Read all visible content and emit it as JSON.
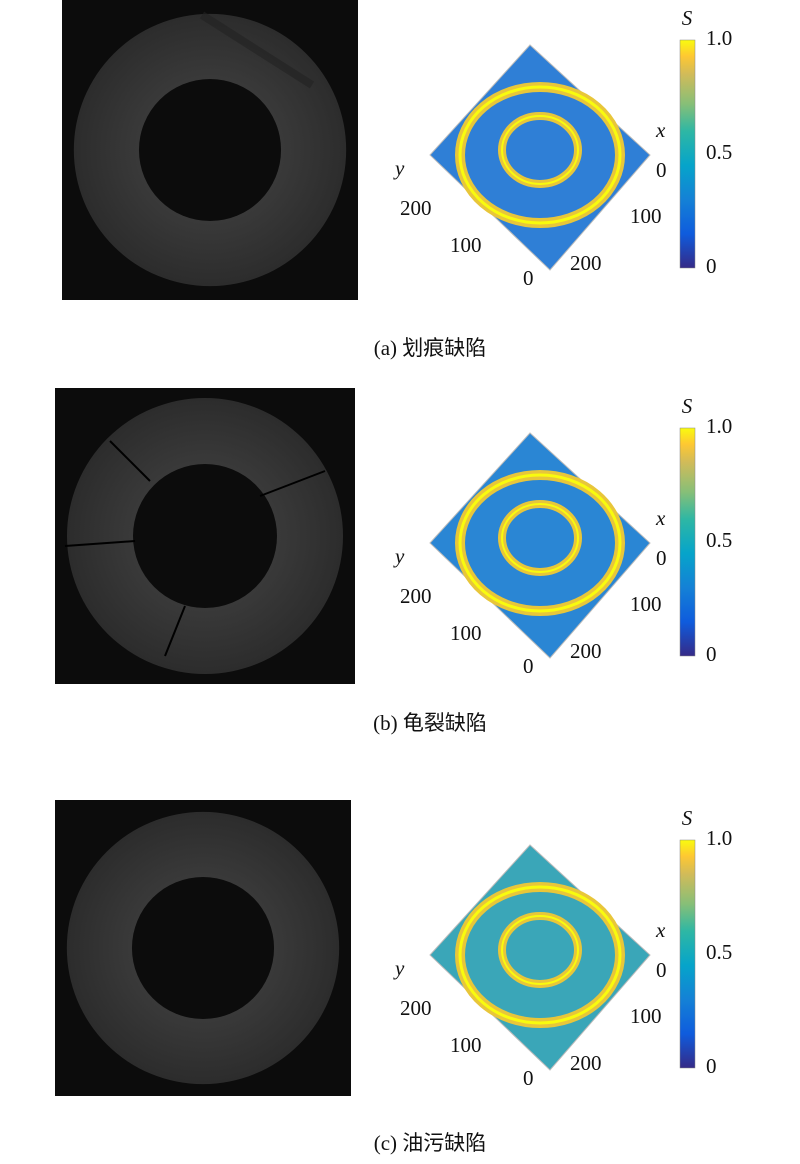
{
  "panels": [
    {
      "caption": "(a) 划痕缺陷",
      "x_label": "x",
      "y_label": "y",
      "x_ticks": [
        "0",
        "100",
        "200"
      ],
      "y_ticks": [
        "200",
        "100",
        "0"
      ],
      "colorbar_label": "S",
      "colorbar_ticks": [
        "1.0",
        "0.5",
        "0"
      ]
    },
    {
      "caption": "(b) 龟裂缺陷",
      "x_label": "x",
      "y_label": "y",
      "x_ticks": [
        "0",
        "100",
        "200"
      ],
      "y_ticks": [
        "200",
        "100",
        "0"
      ],
      "colorbar_label": "S",
      "colorbar_ticks": [
        "1.0",
        "0.5",
        "0"
      ]
    },
    {
      "caption": "(c) 油污缺陷",
      "x_label": "x",
      "y_label": "y",
      "x_ticks": [
        "0",
        "100",
        "200"
      ],
      "y_ticks": [
        "200",
        "100",
        "0"
      ],
      "colorbar_label": "S",
      "colorbar_ticks": [
        "1.0",
        "0.5",
        "0"
      ]
    }
  ]
}
